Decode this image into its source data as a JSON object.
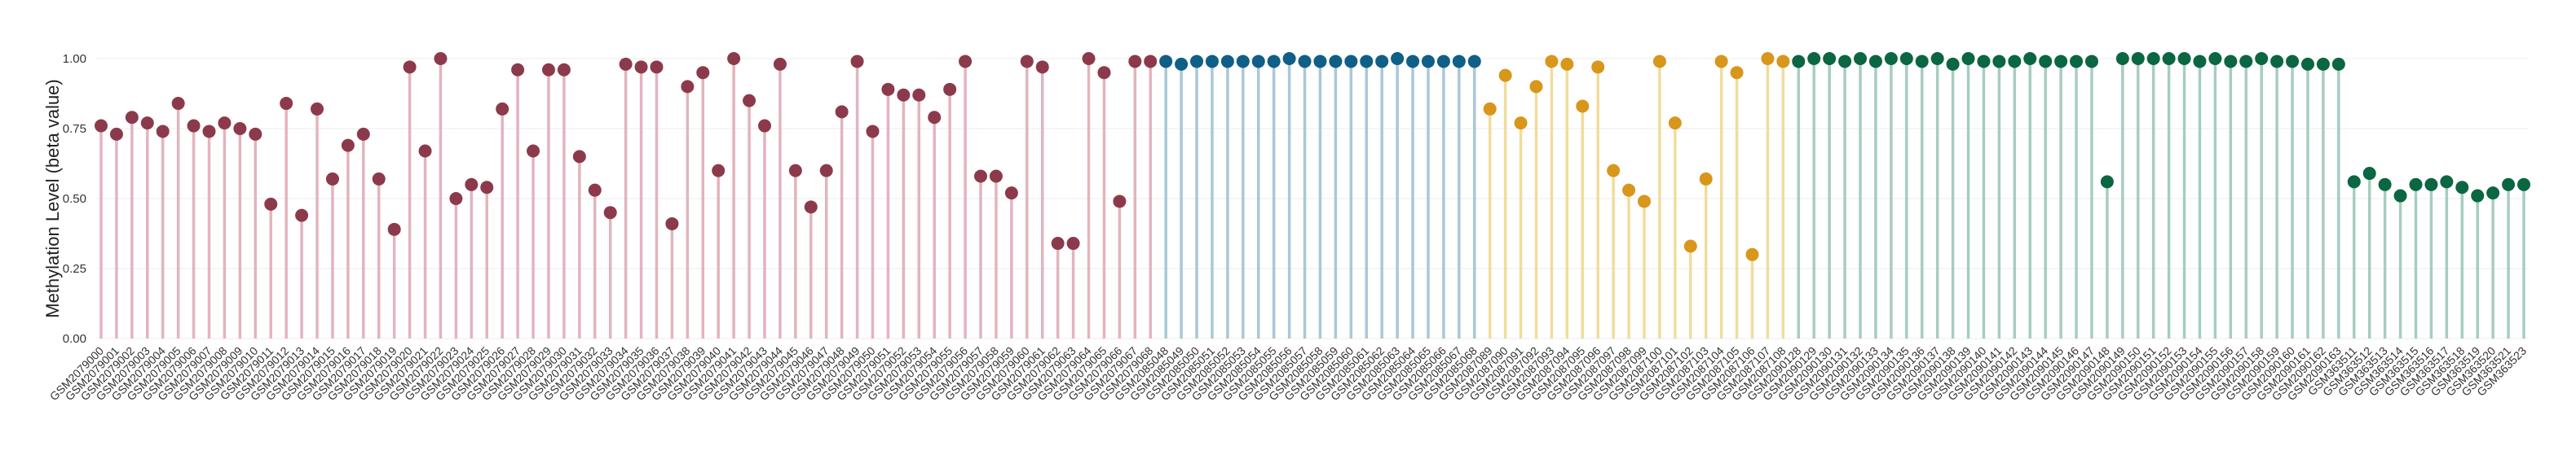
{
  "chart_data": {
    "type": "lollipop",
    "ylabel": "Methylation Level (beta value)",
    "ylim": [
      0,
      1
    ],
    "yticks": [
      "0.00",
      "0.25",
      "0.50",
      "0.75",
      "1.00"
    ],
    "grid": true,
    "group_colors": {
      "a": {
        "point": "#8c3a4b",
        "stem": "#e2b4be"
      },
      "b": {
        "point": "#0f5f86",
        "stem": "#a9c8d8"
      },
      "c": {
        "point": "#d8961b",
        "stem": "#f1dc9c"
      },
      "d": {
        "point": "#0b6642",
        "stem": "#a7cdbf"
      }
    },
    "groups": [
      {
        "key": "a",
        "prefix": "GSM2",
        "start": 79000,
        "values": [
          0.76,
          0.73,
          0.79,
          0.77,
          0.74,
          0.84,
          0.76,
          0.74,
          0.77,
          0.75,
          0.73,
          0.48,
          0.84,
          0.44,
          0.82,
          0.57,
          0.69,
          0.73,
          0.57,
          0.39,
          0.97,
          0.67,
          1.0,
          0.5,
          0.55,
          0.54,
          0.82,
          0.96,
          0.67,
          0.96,
          0.96,
          0.65,
          0.53,
          0.45,
          0.98,
          0.97,
          0.97,
          0.41,
          0.9,
          0.95,
          0.6,
          1.0,
          0.85,
          0.76,
          0.98,
          0.6,
          0.47,
          0.6,
          0.81,
          0.99,
          0.74,
          0.89,
          0.87,
          0.87,
          0.79,
          0.89,
          0.99,
          0.58,
          0.58,
          0.52,
          0.99,
          0.97,
          0.34,
          0.34,
          1.0,
          0.95,
          0.49,
          0.99,
          0.99
        ]
      },
      {
        "key": "b",
        "prefix": "GSM2",
        "start": 85048,
        "values": [
          0.99,
          0.98,
          0.99,
          0.99,
          0.99,
          0.99,
          0.99,
          0.99,
          1.0,
          0.99,
          0.99,
          0.99,
          0.99,
          0.99,
          0.99,
          1.0,
          0.99,
          0.99,
          0.99,
          0.99,
          0.99
        ]
      },
      {
        "key": "c",
        "prefix": "GSM2",
        "start": 87089,
        "values": [
          0.82,
          0.94,
          0.77,
          0.9,
          0.99,
          0.98,
          0.83,
          0.97,
          0.6,
          0.53,
          0.49,
          0.99,
          0.77,
          0.33,
          0.57,
          0.99,
          0.95,
          0.3,
          1.0,
          0.99
        ]
      },
      {
        "key": "d",
        "prefix": "GSM2",
        "start": 90128,
        "values": [
          0.99,
          1.0,
          1.0,
          0.99,
          1.0,
          0.99,
          1.0,
          1.0,
          0.99,
          1.0,
          0.98,
          1.0,
          0.99,
          0.99,
          0.99,
          1.0,
          0.99,
          0.99,
          0.99,
          0.99,
          0.56,
          1.0,
          1.0,
          1.0,
          1.0,
          1.0,
          0.99,
          1.0,
          0.99,
          0.99,
          1.0,
          0.99,
          0.99,
          0.98,
          0.98,
          0.98,
          0.56,
          0.59,
          0.55,
          0.51,
          0.55,
          0.55,
          0.56,
          0.54,
          0.51,
          0.52,
          0.55,
          0.55
        ]
      }
    ],
    "labels_group_d_tail": [
      "GSM363511",
      "GSM363512",
      "GSM363513",
      "GSM363514",
      "GSM363515",
      "GSM363516",
      "GSM363517",
      "GSM363518",
      "GSM363519",
      "GSM363520",
      "GSM363521",
      "GSM363523"
    ]
  }
}
